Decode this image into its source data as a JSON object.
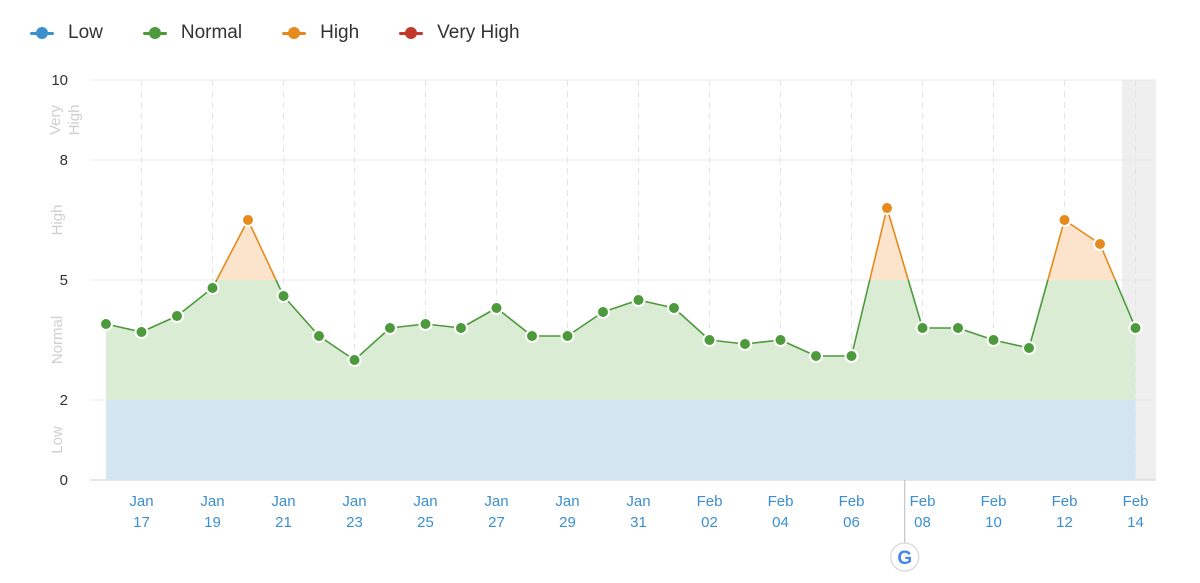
{
  "legend": [
    {
      "label": "Low",
      "color": "#3a8fcc"
    },
    {
      "label": "Normal",
      "color": "#4c9a3c"
    },
    {
      "label": "High",
      "color": "#e68a1d"
    },
    {
      "label": "Very High",
      "color": "#c0392b"
    }
  ],
  "chart_data": {
    "type": "line",
    "ylim": [
      0,
      10
    ],
    "yticks": [
      0,
      2,
      5,
      8,
      10
    ],
    "zones": [
      {
        "name": "Low",
        "from": 0,
        "to": 2,
        "color": "#d4e6f2"
      },
      {
        "name": "Normal",
        "from": 2,
        "to": 5,
        "color": "#dbecd4"
      },
      {
        "name": "High",
        "from": 5,
        "to": 8,
        "color": "#fbe3cc"
      },
      {
        "name": "Very",
        "name2": "High",
        "from": 8,
        "to": 10
      }
    ],
    "zone_labels": {
      "low": "Low",
      "normal": "Normal",
      "high": "High",
      "very_high_1": "Very",
      "very_high_2": "High"
    },
    "x_dates": [
      "Jan 16",
      "Jan 17",
      "Jan 18",
      "Jan 19",
      "Jan 20",
      "Jan 21",
      "Jan 22",
      "Jan 23",
      "Jan 24",
      "Jan 25",
      "Jan 26",
      "Jan 27",
      "Jan 28",
      "Jan 29",
      "Jan 30",
      "Jan 31",
      "Feb 01",
      "Feb 02",
      "Feb 03",
      "Feb 04",
      "Feb 05",
      "Feb 06",
      "Feb 07",
      "Feb 08",
      "Feb 09",
      "Feb 10",
      "Feb 11",
      "Feb 12",
      "Feb 13",
      "Feb 14"
    ],
    "values": [
      3.9,
      3.7,
      4.1,
      4.8,
      6.5,
      4.6,
      3.6,
      3.0,
      3.8,
      3.9,
      3.8,
      4.3,
      3.6,
      3.6,
      4.2,
      4.5,
      4.3,
      3.5,
      3.4,
      3.5,
      3.1,
      3.1,
      6.8,
      3.8,
      3.8,
      3.5,
      3.3,
      6.5,
      5.9,
      3.8
    ],
    "x_tick_labels": [
      {
        "month": "Jan",
        "day": "17",
        "index": 1
      },
      {
        "month": "Jan",
        "day": "19",
        "index": 3
      },
      {
        "month": "Jan",
        "day": "21",
        "index": 5
      },
      {
        "month": "Jan",
        "day": "23",
        "index": 7
      },
      {
        "month": "Jan",
        "day": "25",
        "index": 9
      },
      {
        "month": "Jan",
        "day": "27",
        "index": 11
      },
      {
        "month": "Jan",
        "day": "29",
        "index": 13
      },
      {
        "month": "Jan",
        "day": "31",
        "index": 15
      },
      {
        "month": "Feb",
        "day": "02",
        "index": 17
      },
      {
        "month": "Feb",
        "day": "04",
        "index": 19
      },
      {
        "month": "Feb",
        "day": "06",
        "index": 21
      },
      {
        "month": "Feb",
        "day": "08",
        "index": 23
      },
      {
        "month": "Feb",
        "day": "10",
        "index": 25
      },
      {
        "month": "Feb",
        "day": "12",
        "index": 27
      },
      {
        "month": "Feb",
        "day": "14",
        "index": 29
      }
    ],
    "annotation": {
      "type": "google-update-marker",
      "icon": "google-icon",
      "index": 22.5,
      "letter": "G"
    },
    "grid": true,
    "legend_position": "top-left"
  }
}
